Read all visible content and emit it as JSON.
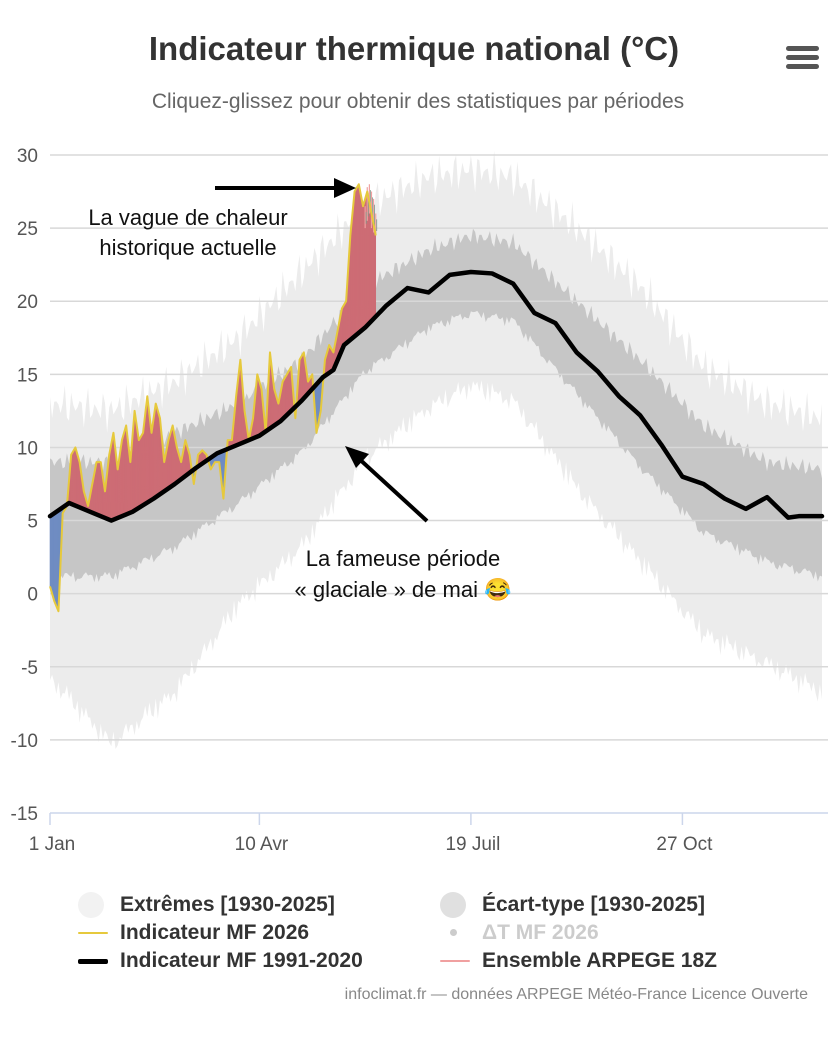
{
  "title": "Indicateur thermique national (°C)",
  "subtitle": "Cliquez-glissez pour obtenir des statistiques par périodes",
  "menu": {
    "icon": "hamburger-menu-icon"
  },
  "credits": "infoclimat.fr — données ARPEGE Météo-France Licence Ouverte",
  "annotations": {
    "heatwave_line1": "La vague de chaleur",
    "heatwave_line2": "historique actuelle",
    "cold_line1": "La fameuse période",
    "cold_line2": "« glaciale » de mai 😂"
  },
  "legend": [
    {
      "key": "extremes",
      "label": "Extrêmes [1930-2025]",
      "symbol": "circle",
      "color": "#f2f2f2",
      "enabled": true
    },
    {
      "key": "ecart",
      "label": "Écart-type [1930-2025]",
      "symbol": "circle",
      "color": "#e0e0e0",
      "enabled": true
    },
    {
      "key": "mf2026",
      "label": "Indicateur MF 2026",
      "symbol": "line",
      "color": "#e6c93c",
      "enabled": true
    },
    {
      "key": "delta",
      "label": "ΔT MF 2026",
      "symbol": "dot",
      "color": "#cccccc",
      "enabled": false
    },
    {
      "key": "normal",
      "label": "Indicateur MF 1991-2020",
      "symbol": "line",
      "color": "#000000",
      "enabled": true
    },
    {
      "key": "arpege",
      "label": "Ensemble ARPEGE 18Z",
      "symbol": "line",
      "color": "#f0a0a0",
      "enabled": true
    }
  ],
  "chart_data": {
    "type": "area",
    "xlabel": "",
    "ylabel": "",
    "x_ticks": [
      "1 Jan",
      "10 Avr",
      "19 Juil",
      "27 Oct"
    ],
    "x_tick_days": [
      1,
      100,
      200,
      300
    ],
    "x_range": [
      1,
      366
    ],
    "ylim": [
      -15,
      30
    ],
    "y_ticks": [
      -15,
      -10,
      -5,
      0,
      5,
      10,
      15,
      20,
      25,
      30
    ],
    "grid": true,
    "colors": {
      "extremes": "#ececec",
      "stddev": "#c6c6c6",
      "normal": "#000000",
      "mf2026": "#e6c93c",
      "warm_anomaly": "#cd6c75",
      "cold_anomaly": "#6f8cc2",
      "arpege": "#f0a0a0"
    },
    "normal_1991_2020": {
      "x": [
        1,
        10,
        20,
        30,
        40,
        50,
        60,
        70,
        80,
        90,
        100,
        110,
        120,
        130,
        135,
        140,
        150,
        160,
        170,
        180,
        190,
        200,
        210,
        220,
        230,
        240,
        250,
        260,
        270,
        280,
        290,
        300,
        310,
        320,
        330,
        340,
        350,
        355,
        360,
        366
      ],
      "values": [
        5.3,
        6.2,
        5.6,
        5.0,
        5.6,
        6.5,
        7.5,
        8.6,
        9.6,
        10.2,
        10.8,
        11.8,
        13.2,
        14.8,
        15.3,
        17.0,
        18.2,
        19.7,
        20.9,
        20.6,
        21.8,
        22.0,
        21.9,
        21.2,
        19.2,
        18.5,
        16.5,
        15.2,
        13.5,
        12.2,
        10.2,
        8.0,
        7.5,
        6.5,
        5.8,
        6.6,
        5.2,
        5.3,
        5.3,
        5.3
      ]
    },
    "stddev_band": {
      "x": [
        1,
        30,
        60,
        90,
        120,
        150,
        180,
        200,
        220,
        250,
        280,
        310,
        340,
        366
      ],
      "upper": [
        9,
        9,
        11,
        13,
        16,
        21,
        23.5,
        24.5,
        24,
        20,
        16,
        11.5,
        9,
        8.5
      ],
      "lower": [
        1.5,
        1.5,
        3.5,
        6.5,
        10,
        15.5,
        18.5,
        19.5,
        19,
        14,
        9,
        4.5,
        2.5,
        1.5
      ]
    },
    "extremes_band": {
      "x": [
        1,
        30,
        60,
        90,
        120,
        150,
        180,
        200,
        220,
        250,
        280,
        310,
        340,
        366
      ],
      "upper": [
        13,
        12.5,
        14.5,
        17.5,
        22,
        26.5,
        28.5,
        29,
        28.5,
        25,
        21,
        15.5,
        13,
        12
      ],
      "lower": [
        -5,
        -9.5,
        -6,
        0,
        4,
        10,
        13.5,
        15,
        14,
        8,
        3,
        -2,
        -4,
        -6
      ]
    },
    "mf2026": {
      "x": [
        1,
        3,
        5,
        7,
        9,
        11,
        13,
        15,
        17,
        19,
        21,
        23,
        25,
        27,
        29,
        31,
        33,
        35,
        37,
        39,
        41,
        43,
        45,
        47,
        49,
        51,
        53,
        55,
        57,
        59,
        61,
        63,
        65,
        67,
        69,
        71,
        73,
        75,
        77,
        79,
        81,
        83,
        85,
        87,
        89,
        91,
        93,
        95,
        97,
        99,
        101,
        103,
        105,
        107,
        109,
        111,
        113,
        115,
        117,
        119,
        121,
        123,
        125,
        127,
        129,
        131,
        133,
        135,
        137,
        139,
        141,
        143,
        145,
        147,
        149,
        151,
        153,
        155
      ],
      "values": [
        0.5,
        -0.5,
        -1.2,
        5.5,
        6.0,
        9.5,
        10.0,
        9.0,
        7.0,
        6.0,
        7.5,
        9.0,
        9.0,
        7.0,
        9.5,
        11.0,
        8.5,
        10.5,
        11.5,
        9.0,
        12.5,
        10.5,
        11.0,
        13.5,
        11.0,
        13.0,
        12.0,
        9.0,
        10.5,
        11.5,
        10.0,
        9.0,
        10.5,
        9.5,
        7.5,
        9.5,
        9.8,
        9.5,
        8.5,
        9.0,
        9.0,
        6.5,
        10.5,
        10.5,
        13.5,
        16.0,
        12.5,
        10.5,
        12.0,
        15.0,
        14.0,
        11.0,
        16.5,
        14.0,
        13.0,
        14.5,
        15.0,
        15.5,
        12.0,
        16.0,
        16.5,
        14.5,
        15.0,
        11.0,
        12.5,
        16.0,
        17.0,
        16.5,
        18.0,
        19.5,
        20.0,
        24.5,
        27.5,
        28.0,
        26.5,
        27.5,
        26.0,
        24.5
      ]
    },
    "arpege_spread": {
      "x": [
        150,
        151,
        152,
        153,
        154,
        155
      ],
      "upper": [
        26.5,
        27.8,
        28.0,
        27.5,
        27.0,
        26.0
      ],
      "lower": [
        25.0,
        25.5,
        26.0,
        25.0,
        24.7,
        24.5
      ]
    }
  }
}
